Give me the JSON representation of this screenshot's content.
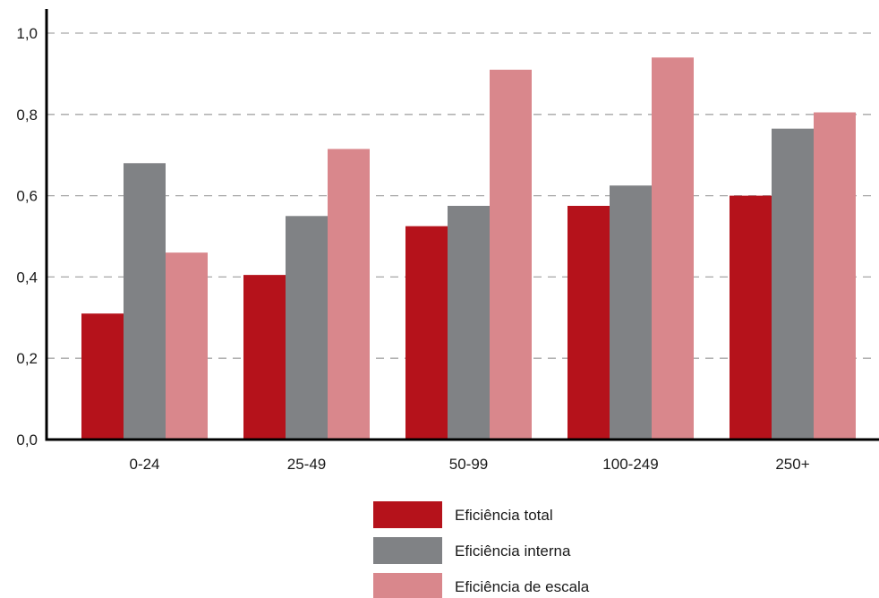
{
  "chart_data": {
    "type": "bar",
    "title": "",
    "xlabel": "",
    "ylabel": "",
    "categories": [
      "0-24",
      "25-49",
      "50-99",
      "100-249",
      "250+"
    ],
    "series": [
      {
        "name": "Eficiência total",
        "color": "#b5121b",
        "values": [
          0.31,
          0.405,
          0.525,
          0.575,
          0.6
        ]
      },
      {
        "name": "Eficiência interna",
        "color": "#808285",
        "values": [
          0.68,
          0.55,
          0.575,
          0.625,
          0.765
        ]
      },
      {
        "name": "Eficiência de escala",
        "color": "#d9878c",
        "values": [
          0.46,
          0.715,
          0.91,
          0.94,
          0.805
        ]
      }
    ],
    "ylim": [
      0,
      1.0
    ],
    "yticks": [
      0.0,
      0.2,
      0.4,
      0.6,
      0.8,
      1.0
    ],
    "ytick_labels": [
      "0,0",
      "0,2",
      "0,4",
      "0,6",
      "0,8",
      "1,0"
    ],
    "grid": true,
    "grid_style": "dashed",
    "legend_position": "bottom-center"
  }
}
